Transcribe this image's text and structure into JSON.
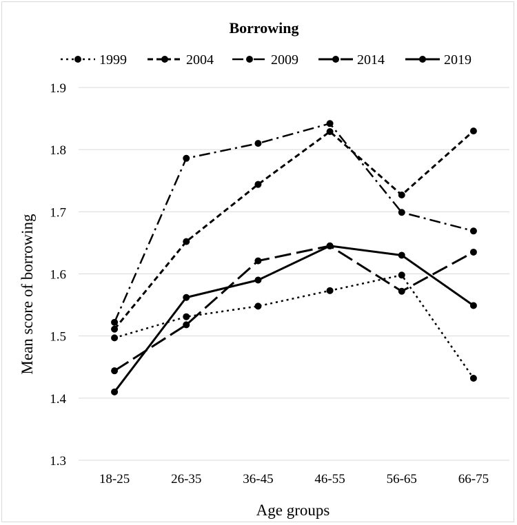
{
  "chart_data": {
    "type": "line",
    "title": "Borrowing",
    "xlabel": "Age groups",
    "ylabel": "Mean score of borrowing",
    "categories": [
      "18-25",
      "26-35",
      "36-45",
      "46-55",
      "56-65",
      "66-75"
    ],
    "ylim": [
      1.3,
      1.9
    ],
    "yticks": [
      "1.3",
      "1.4",
      "1.5",
      "1.6",
      "1.7",
      "1.8",
      "1.9"
    ],
    "grid": true,
    "legend_position": "top",
    "series": [
      {
        "name": "1999",
        "values": [
          1.497,
          1.531,
          1.548,
          1.573,
          1.598,
          1.432
        ],
        "dash": "3 5",
        "width": 2.5
      },
      {
        "name": "2004",
        "values": [
          1.511,
          1.652,
          1.744,
          1.829,
          1.727,
          1.83
        ],
        "dash": "8 5",
        "width": 3
      },
      {
        "name": "2009",
        "values": [
          1.522,
          1.786,
          1.81,
          1.842,
          1.699,
          1.669
        ],
        "dash": "16 6 3 6",
        "width": 2.5
      },
      {
        "name": "2014",
        "values": [
          1.444,
          1.518,
          1.621,
          1.645,
          1.572,
          1.635
        ],
        "dash": "24 8",
        "width": 3
      },
      {
        "name": "2019",
        "values": [
          1.41,
          1.562,
          1.59,
          1.645,
          1.63,
          1.549
        ],
        "dash": "none",
        "width": 3
      }
    ]
  }
}
